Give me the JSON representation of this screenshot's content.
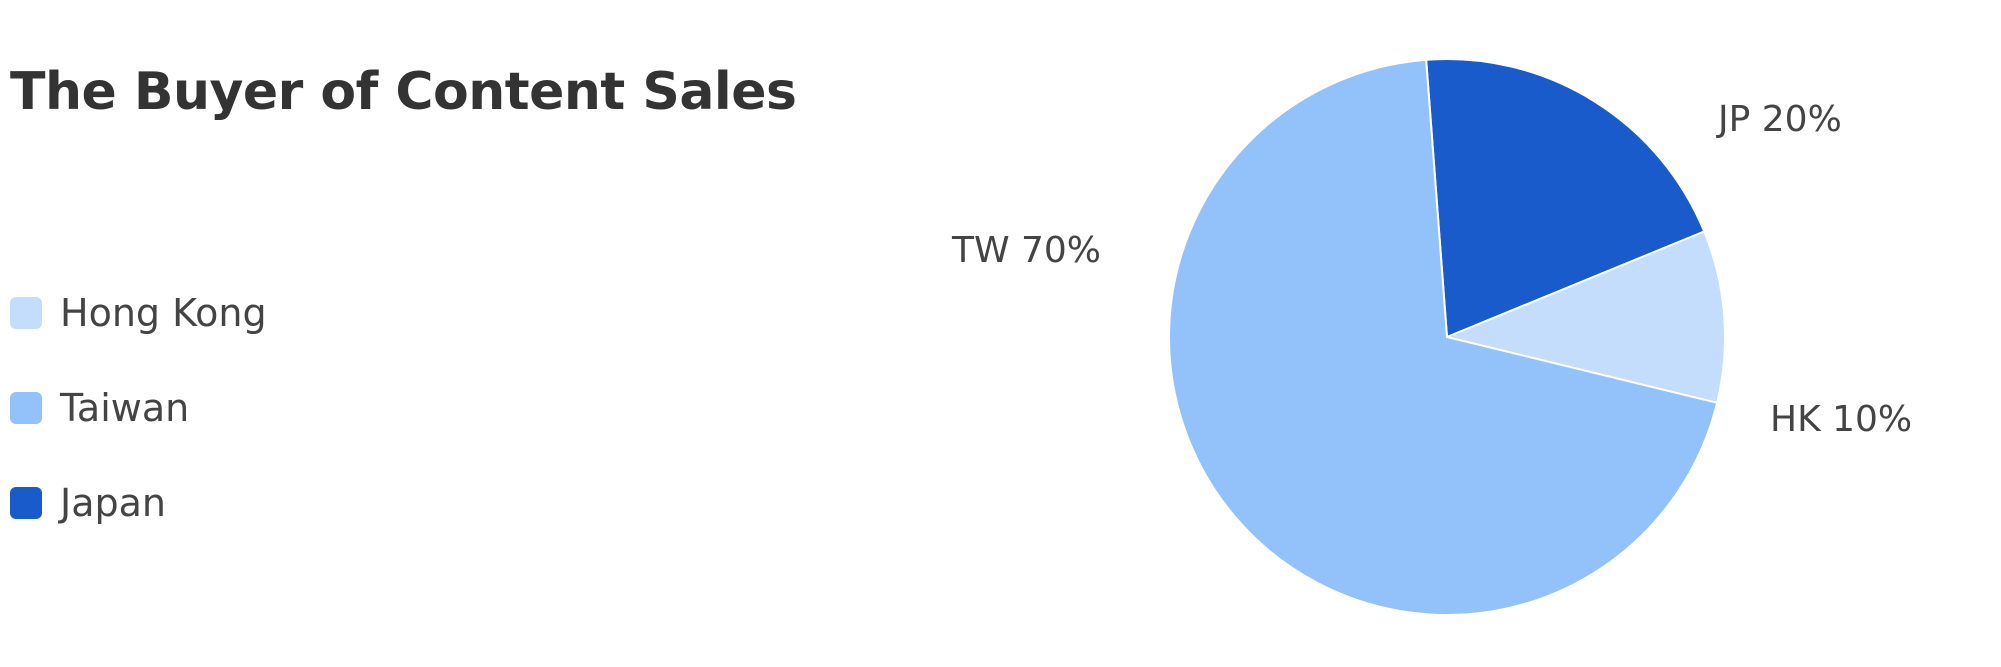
{
  "chart_data": {
    "type": "pie",
    "title": "The Buyer of Content Sales",
    "legend_position": "left",
    "series": [
      {
        "name": "Hong Kong",
        "short": "HK",
        "value": 10,
        "label": "HK 10%",
        "color": "#c4ddfd"
      },
      {
        "name": "Taiwan",
        "short": "TW",
        "value": 70,
        "label": "TW 70%",
        "color": "#93c2fb"
      },
      {
        "name": "Japan",
        "short": "JP",
        "value": 20,
        "label": "JP 20%",
        "color": "#1a5bcc"
      }
    ]
  }
}
